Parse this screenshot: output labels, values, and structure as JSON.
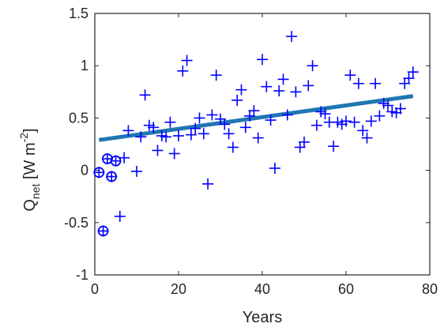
{
  "chart_data": {
    "type": "scatter",
    "xlabel": "Years",
    "ylabel": {
      "main": "Q",
      "sub": "net",
      "units_open": " [W m",
      "units_sup": "-2",
      "units_close": "]"
    },
    "xlim": [
      0,
      80
    ],
    "ylim": [
      -1,
      1.5
    ],
    "xticks": [
      "0",
      "20",
      "40",
      "60",
      "80"
    ],
    "yticks": [
      "-1",
      "-0.5",
      "0",
      "0.5",
      "1",
      "1.5"
    ],
    "grid": false,
    "legend": "none",
    "colors": {
      "markers": "#0000ff",
      "trend": "#1f77b4",
      "axes": "#262626"
    },
    "series": [
      {
        "marker": "plus",
        "points": [
          [
            1,
            -0.02
          ],
          [
            2,
            -0.58
          ],
          [
            3,
            0.11
          ],
          [
            4,
            -0.06
          ],
          [
            5,
            0.09
          ],
          [
            6,
            -0.44
          ],
          [
            7,
            0.12
          ],
          [
            8,
            0.38
          ],
          [
            10,
            -0.01
          ],
          [
            11,
            0.32
          ],
          [
            12,
            0.72
          ],
          [
            13,
            0.43
          ],
          [
            14,
            0.41
          ],
          [
            15,
            0.19
          ],
          [
            16,
            0.33
          ],
          [
            17,
            0.32
          ],
          [
            18,
            0.46
          ],
          [
            19,
            0.16
          ],
          [
            20,
            0.33
          ],
          [
            21,
            0.95
          ],
          [
            22,
            1.05
          ],
          [
            23,
            0.34
          ],
          [
            24,
            0.4
          ],
          [
            25,
            0.5
          ],
          [
            26,
            0.35
          ],
          [
            27,
            -0.13
          ],
          [
            28,
            0.53
          ],
          [
            29,
            0.91
          ],
          [
            30,
            0.49
          ],
          [
            31,
            0.44
          ],
          [
            32,
            0.35
          ],
          [
            33,
            0.22
          ],
          [
            34,
            0.67
          ],
          [
            35,
            0.77
          ],
          [
            36,
            0.41
          ],
          [
            37,
            0.52
          ],
          [
            38,
            0.57
          ],
          [
            39,
            0.31
          ],
          [
            40,
            1.06
          ],
          [
            41,
            0.8
          ],
          [
            42,
            0.48
          ],
          [
            43,
            0.02
          ],
          [
            44,
            0.76
          ],
          [
            45,
            0.87
          ],
          [
            46,
            0.53
          ],
          [
            47,
            1.28
          ],
          [
            48,
            0.75
          ],
          [
            49,
            0.22
          ],
          [
            50,
            0.27
          ],
          [
            51,
            0.81
          ],
          [
            52,
            1.0
          ],
          [
            53,
            0.43
          ],
          [
            54,
            0.56
          ],
          [
            55,
            0.54
          ],
          [
            56,
            0.46
          ],
          [
            57,
            0.23
          ],
          [
            58,
            0.46
          ],
          [
            59,
            0.44
          ],
          [
            60,
            0.47
          ],
          [
            61,
            0.91
          ],
          [
            62,
            0.46
          ],
          [
            63,
            0.83
          ],
          [
            64,
            0.38
          ],
          [
            65,
            0.31
          ],
          [
            66,
            0.47
          ],
          [
            67,
            0.83
          ],
          [
            68,
            0.52
          ],
          [
            69,
            0.64
          ],
          [
            70,
            0.62
          ],
          [
            71,
            0.56
          ],
          [
            72,
            0.55
          ],
          [
            73,
            0.59
          ],
          [
            74,
            0.83
          ],
          [
            75,
            0.88
          ],
          [
            76,
            0.94
          ]
        ]
      },
      {
        "marker": "circle",
        "points": [
          [
            1,
            -0.02
          ],
          [
            2,
            -0.58
          ],
          [
            3,
            0.11
          ],
          [
            4,
            -0.06
          ],
          [
            5,
            0.09
          ]
        ]
      }
    ],
    "trend_line": {
      "x": [
        1,
        76
      ],
      "y": [
        0.29,
        0.71
      ]
    }
  }
}
